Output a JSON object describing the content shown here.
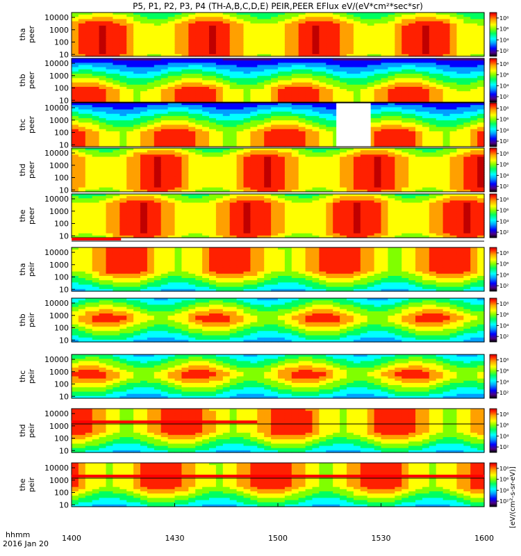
{
  "chart_data": {
    "type": "heatmap",
    "title": "P5, P1, P2, P3, P4 (TH-A,B,C,D,E) PEIR,PEER EFlux eV/(eV*cm²*sec*sr)",
    "xaxis": {
      "label_top": "hhmm",
      "label_bottom": "2016 Jan 20",
      "ticks": [
        "1400",
        "1430",
        "1500",
        "1530",
        "1600"
      ],
      "range_minutes": [
        0,
        120
      ]
    },
    "yaxis": {
      "scale": "log",
      "ticks": [
        "10",
        "100",
        "1000",
        "10000"
      ],
      "range_eV": [
        7,
        25000
      ]
    },
    "colorbar_label": "[eV/(cm²-s-sr-eV)]",
    "colorbar_ticks": [
      "10²",
      "10⁴",
      "10⁶",
      "10⁸"
    ],
    "panels": [
      {
        "probe": "tha",
        "species": "peer",
        "label_top": "tha",
        "label_bottom": "peer",
        "peak_band_log": [
          1.0,
          3.4
        ],
        "mean_intensity": 0.8
      },
      {
        "probe": "thb",
        "species": "peer",
        "label_top": "thb",
        "label_bottom": "peer",
        "peak_band_log": [
          0.9,
          1.8
        ],
        "mean_intensity": 0.75
      },
      {
        "probe": "thc",
        "species": "peer",
        "label_top": "thc",
        "label_bottom": "peer",
        "peak_band_log": [
          0.9,
          2.0
        ],
        "mean_intensity": 0.72,
        "data_gap_minutes": [
          77,
          87
        ]
      },
      {
        "probe": "thd",
        "species": "peer",
        "label_top": "thd",
        "label_bottom": "peer",
        "peak_band_log": [
          1.2,
          3.6
        ],
        "mean_intensity": 0.8
      },
      {
        "probe": "the",
        "species": "peer",
        "label_top": "the",
        "label_bottom": "peer",
        "peak_band_log": [
          1.2,
          3.6
        ],
        "mean_intensity": 0.8
      },
      {
        "probe": "tha",
        "species": "peir",
        "label_top": "tha",
        "label_bottom": "peir",
        "peak_band_log": [
          2.5,
          4.3
        ],
        "mean_intensity": 0.7
      },
      {
        "probe": "thb",
        "species": "peir",
        "label_top": "thb",
        "label_bottom": "peir",
        "peak_band_log": [
          2.6,
          2.9
        ],
        "mean_intensity": 0.45
      },
      {
        "probe": "thc",
        "species": "peir",
        "label_top": "thc",
        "label_bottom": "peir",
        "peak_band_log": [
          2.6,
          2.9
        ],
        "mean_intensity": 0.45
      },
      {
        "probe": "thd",
        "species": "peir",
        "label_top": "thd",
        "label_bottom": "peir",
        "peak_band_log": [
          2.5,
          4.3
        ],
        "mean_intensity": 0.7
      },
      {
        "probe": "the",
        "species": "peir",
        "label_top": "the",
        "label_bottom": "peir",
        "peak_band_log": [
          2.5,
          4.3
        ],
        "mean_intensity": 0.7
      }
    ]
  },
  "colors": {
    "scale": [
      "#000000",
      "#4b0082",
      "#0000ff",
      "#00a0ff",
      "#00ffff",
      "#00ff60",
      "#80ff00",
      "#ffff00",
      "#ffa000",
      "#ff2000",
      "#c00000"
    ],
    "flag_red": "#ff0000",
    "flag_black": "#000000"
  }
}
